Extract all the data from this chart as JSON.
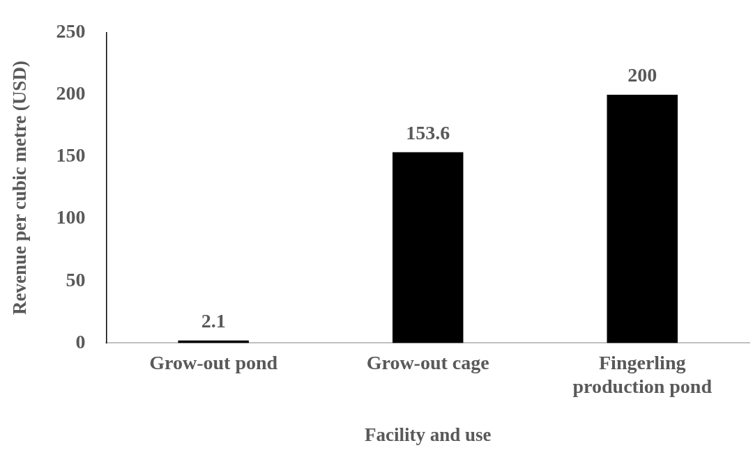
{
  "chart_data": {
    "type": "bar",
    "xlabel": "Facility and use",
    "ylabel": "Revenue per cubic metre (USD)",
    "categories": [
      "Grow-out pond",
      "Grow-out cage",
      "Fingerling production pond"
    ],
    "values": [
      2.1,
      153.6,
      200
    ],
    "color": "#000000",
    "ylim": [
      0,
      250
    ],
    "yticks": [
      0,
      50,
      100,
      150,
      200,
      250
    ],
    "grid": false,
    "legend": false,
    "data_labels": true
  }
}
